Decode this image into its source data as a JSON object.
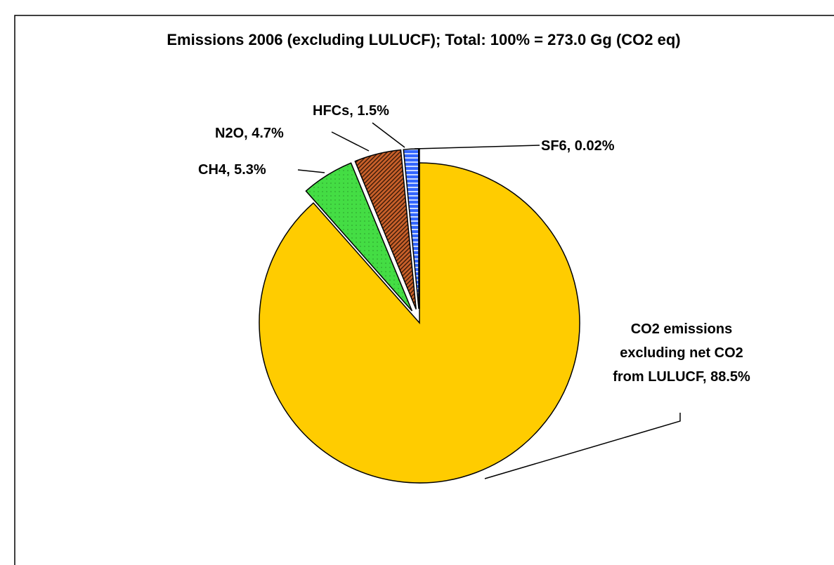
{
  "chart_data": {
    "type": "pie",
    "title": "Emissions 2006 (excluding LULUCF); Total: 100% = 273.0 Gg (CO2 eq)",
    "values": [
      88.5,
      5.3,
      4.7,
      1.5,
      0.02
    ],
    "value_labels": [
      "CO2 emissions excluding net CO2 from LULUCF, 88.5%",
      "CH4, 5.3%",
      "N2O, 4.7%",
      "HFCs, 1.5%",
      "SF6, 0.02%"
    ],
    "colors": [
      "#ffcc00",
      "#44dd44",
      "#c8602a",
      "#3366ff",
      "#ffffff"
    ]
  }
}
